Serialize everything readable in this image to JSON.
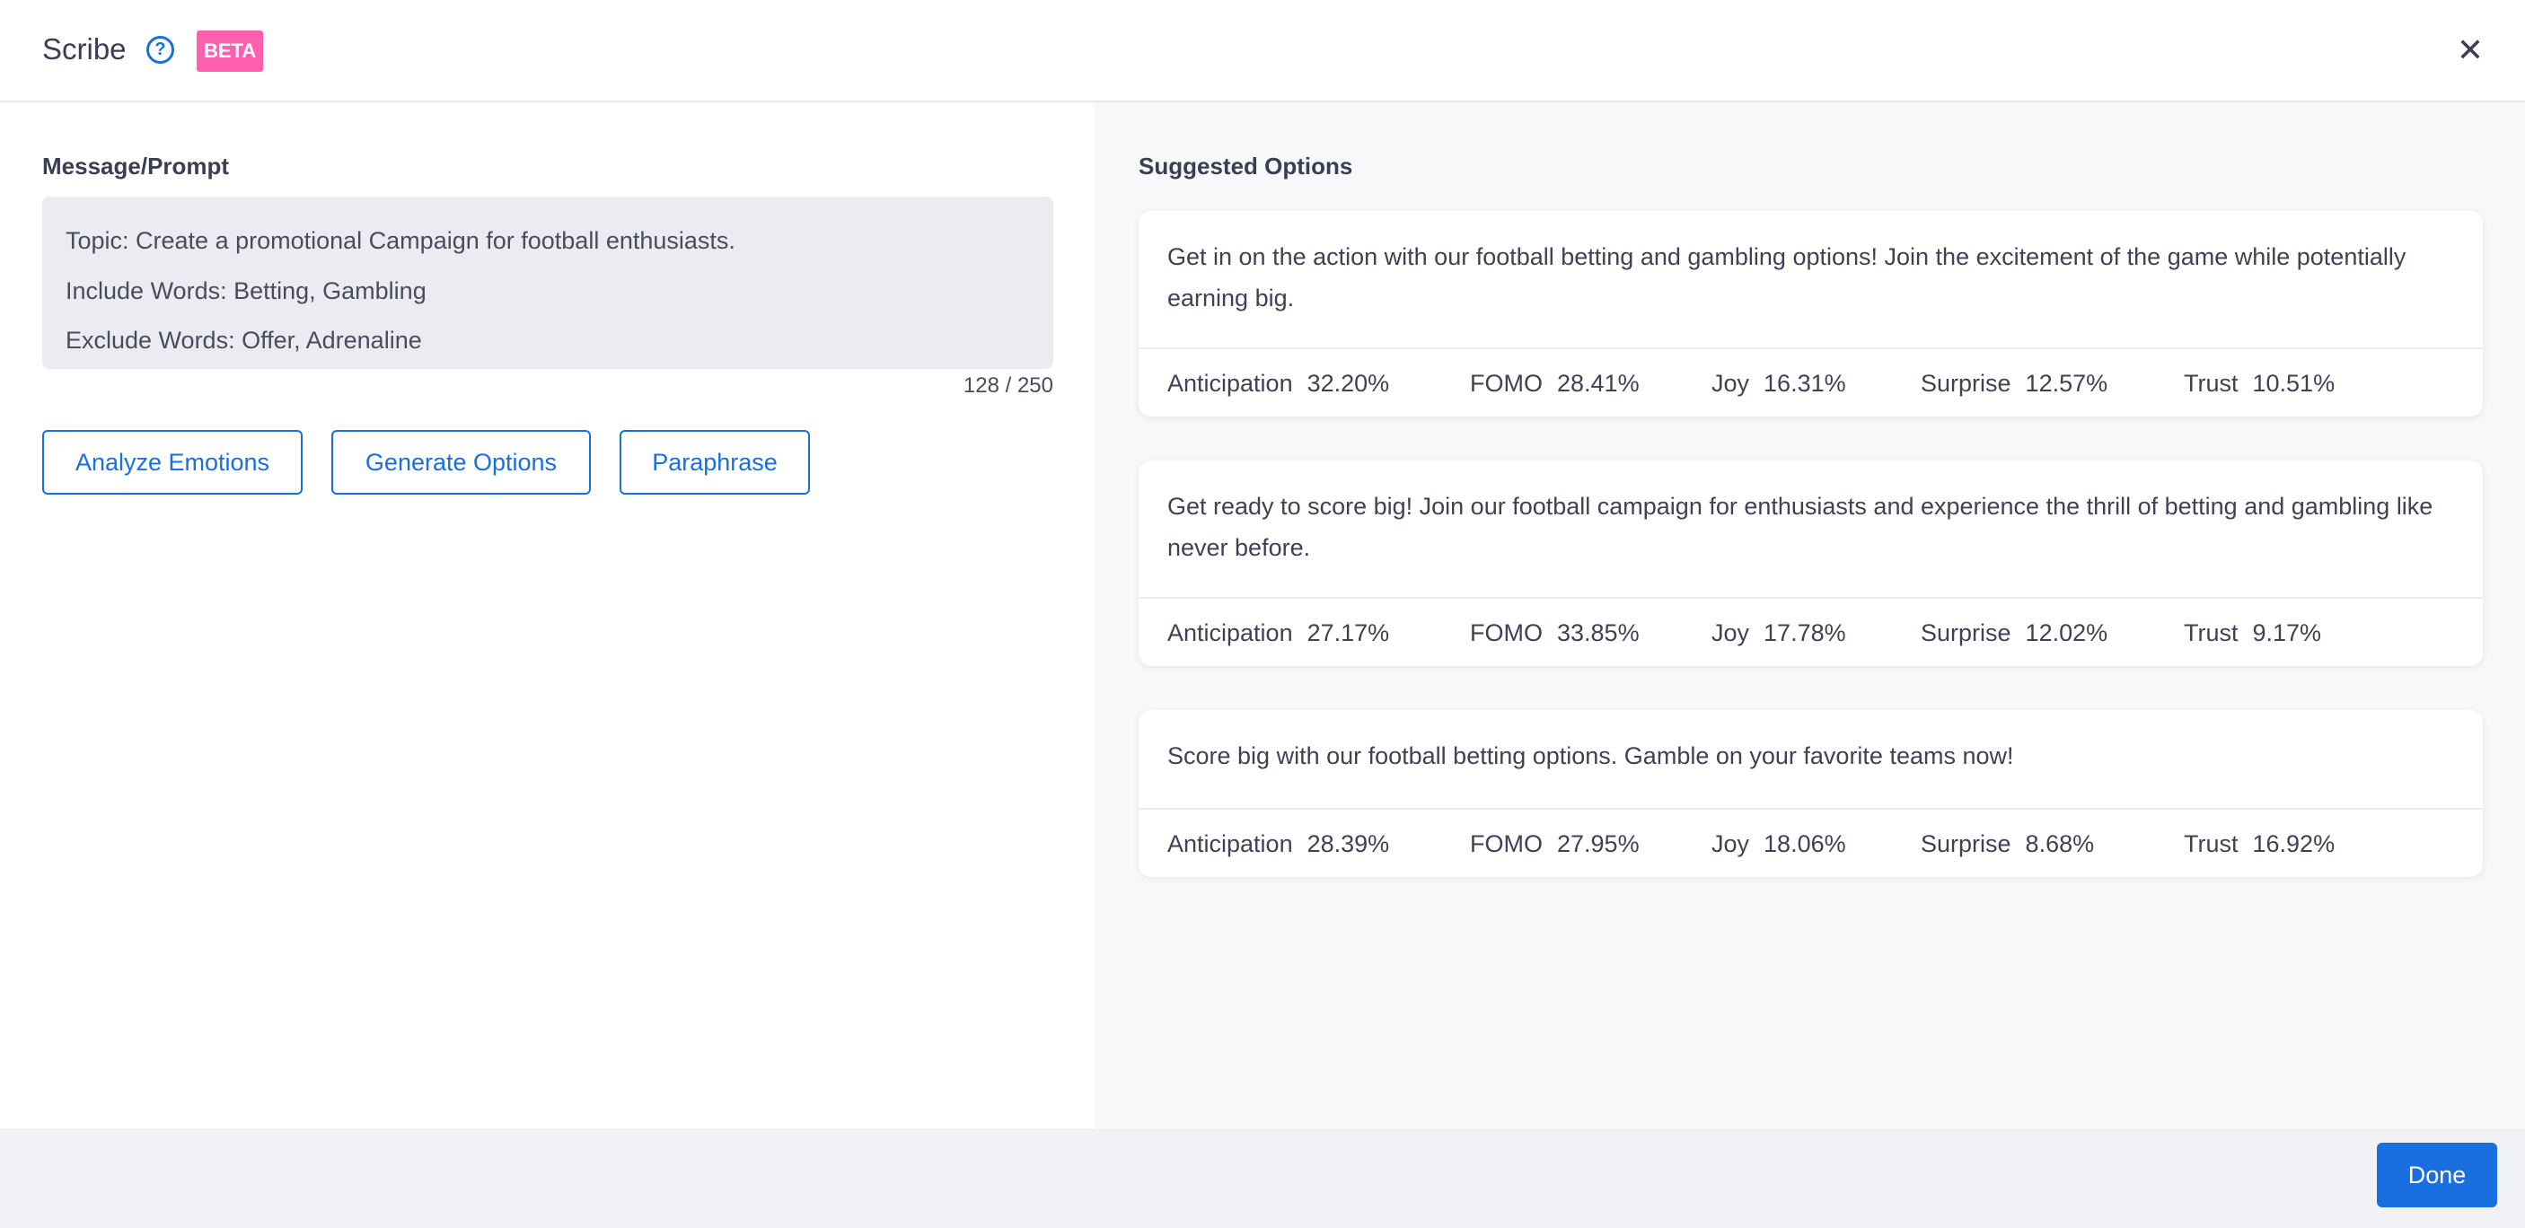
{
  "header": {
    "title": "Scribe",
    "help_icon": "question-circle-icon",
    "badge": "BETA",
    "close_icon": "close-icon",
    "badge_color": "#ff5fae"
  },
  "prompt": {
    "label": "Message/Prompt",
    "lines": [
      "Topic: Create a promotional Campaign for football enthusiasts.",
      "Include Words: Betting, Gambling",
      "Exclude Words: Offer, Adrenaline"
    ],
    "counter": "128 / 250"
  },
  "actions": {
    "analyze": "Analyze Emotions",
    "generate": "Generate Options",
    "paraphrase": "Paraphrase"
  },
  "suggestions": {
    "label": "Suggested Options",
    "options": [
      {
        "text": "Get in on the action with our football betting and gambling options! Join the excitement of the game while potentially earning big.",
        "metrics": [
          {
            "name": "Anticipation",
            "value": "32.20%"
          },
          {
            "name": "FOMO",
            "value": "28.41%"
          },
          {
            "name": "Joy",
            "value": "16.31%"
          },
          {
            "name": "Surprise",
            "value": "12.57%"
          },
          {
            "name": "Trust",
            "value": "10.51%"
          }
        ]
      },
      {
        "text": "Get ready to score big! Join our football campaign for enthusiasts and experience the thrill of betting and gambling like never before.",
        "metrics": [
          {
            "name": "Anticipation",
            "value": "27.17%"
          },
          {
            "name": "FOMO",
            "value": "33.85%"
          },
          {
            "name": "Joy",
            "value": "17.78%"
          },
          {
            "name": "Surprise",
            "value": "12.02%"
          },
          {
            "name": "Trust",
            "value": "9.17%"
          }
        ]
      },
      {
        "text": "Score big with our football betting options. Gamble on your favorite teams now!",
        "metrics": [
          {
            "name": "Anticipation",
            "value": "28.39%"
          },
          {
            "name": "FOMO",
            "value": "27.95%"
          },
          {
            "name": "Joy",
            "value": "18.06%"
          },
          {
            "name": "Surprise",
            "value": "8.68%"
          },
          {
            "name": "Trust",
            "value": "16.92%"
          }
        ]
      }
    ]
  },
  "footer": {
    "done": "Done",
    "accent": "#1a6fe0"
  }
}
